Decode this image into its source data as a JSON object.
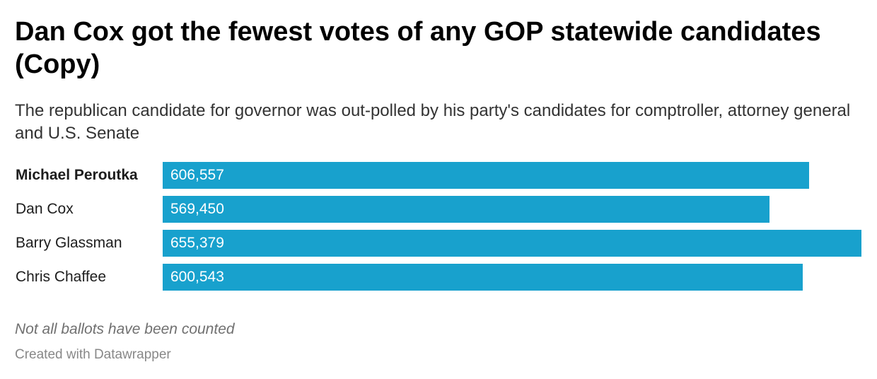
{
  "chart_data": {
    "type": "bar",
    "orientation": "horizontal",
    "title": "Dan Cox got the fewest votes of any GOP statewide candidates (Copy)",
    "subtitle": "The republican candidate for governor was out-polled by his party's candidates for comptroller, attorney general and U.S. Senate",
    "categories": [
      "Michael Peroutka",
      "Dan Cox",
      "Barry Glassman",
      "Chris Chaffee"
    ],
    "values": [
      606557,
      569450,
      655379,
      600543
    ],
    "value_labels": [
      "606,557",
      "569,450",
      "655,379",
      "600,543"
    ],
    "bold_categories": [
      "Michael Peroutka"
    ],
    "bar_color": "#18a1cd",
    "xlim": [
      0,
      655379
    ],
    "grid": false,
    "notes": "Not all ballots have been counted",
    "credit": "Created with Datawrapper"
  }
}
